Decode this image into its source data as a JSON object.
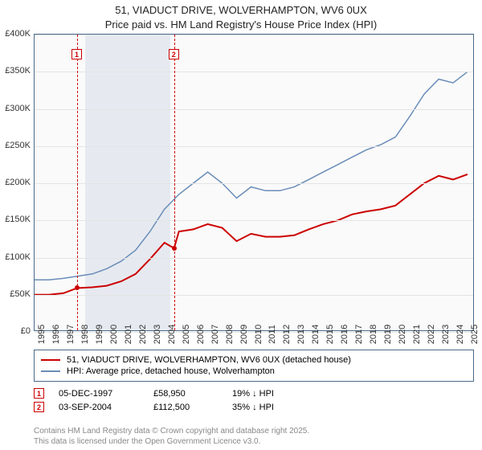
{
  "title": {
    "line1": "51, VIADUCT DRIVE, WOLVERHAMPTON, WV6 0UX",
    "line2": "Price paid vs. HM Land Registry's House Price Index (HPI)"
  },
  "chart": {
    "type": "line",
    "background_color": "#fafafa",
    "border_color": "#4a6a8a",
    "grid_color": "#e4e4e4",
    "y": {
      "min": 0,
      "max": 400000,
      "step": 50000,
      "labels": [
        "£0",
        "£50K",
        "£100K",
        "£150K",
        "£200K",
        "£250K",
        "£300K",
        "£350K",
        "£400K"
      ]
    },
    "x": {
      "min": 1995,
      "max": 2025.5,
      "labels": [
        "1995",
        "1996",
        "1997",
        "1998",
        "1999",
        "2000",
        "2001",
        "2002",
        "2003",
        "2004",
        "2005",
        "2006",
        "2007",
        "2008",
        "2009",
        "2010",
        "2011",
        "2012",
        "2013",
        "2014",
        "2015",
        "2016",
        "2017",
        "2018",
        "2019",
        "2020",
        "2021",
        "2022",
        "2023",
        "2024",
        "2025"
      ]
    },
    "shaded_ranges": [
      {
        "from": 1998.5,
        "to": 2004.4,
        "color": "rgba(100,130,180,0.13)"
      }
    ],
    "series": [
      {
        "name": "price_paid",
        "label": "51, VIADUCT DRIVE, WOLVERHAMPTON, WV6 0UX (detached house)",
        "color": "#cc0000",
        "width": 2,
        "points": [
          [
            1995,
            50000
          ],
          [
            1996,
            50000
          ],
          [
            1997,
            52000
          ],
          [
            1997.95,
            58950
          ],
          [
            1999,
            60000
          ],
          [
            2000,
            62000
          ],
          [
            2001,
            68000
          ],
          [
            2002,
            78000
          ],
          [
            2003,
            98000
          ],
          [
            2004,
            120000
          ],
          [
            2004.67,
            112500
          ],
          [
            2005,
            135000
          ],
          [
            2006,
            138000
          ],
          [
            2007,
            145000
          ],
          [
            2008,
            140000
          ],
          [
            2009,
            122000
          ],
          [
            2010,
            132000
          ],
          [
            2011,
            128000
          ],
          [
            2012,
            128000
          ],
          [
            2013,
            130000
          ],
          [
            2014,
            138000
          ],
          [
            2015,
            145000
          ],
          [
            2016,
            150000
          ],
          [
            2017,
            158000
          ],
          [
            2018,
            162000
          ],
          [
            2019,
            165000
          ],
          [
            2020,
            170000
          ],
          [
            2021,
            185000
          ],
          [
            2022,
            200000
          ],
          [
            2023,
            210000
          ],
          [
            2024,
            205000
          ],
          [
            2025,
            212000
          ]
        ],
        "markers": [
          {
            "x": 1997.95,
            "y": 58950
          },
          {
            "x": 2004.67,
            "y": 112500
          }
        ]
      },
      {
        "name": "hpi",
        "label": "HPI: Average price, detached house, Wolverhampton",
        "color": "#6b8db8",
        "width": 1.5,
        "points": [
          [
            1995,
            70000
          ],
          [
            1996,
            70000
          ],
          [
            1997,
            72000
          ],
          [
            1998,
            75000
          ],
          [
            1999,
            78000
          ],
          [
            2000,
            85000
          ],
          [
            2001,
            95000
          ],
          [
            2002,
            110000
          ],
          [
            2003,
            135000
          ],
          [
            2004,
            165000
          ],
          [
            2005,
            185000
          ],
          [
            2006,
            200000
          ],
          [
            2007,
            215000
          ],
          [
            2008,
            200000
          ],
          [
            2009,
            180000
          ],
          [
            2010,
            195000
          ],
          [
            2011,
            190000
          ],
          [
            2012,
            190000
          ],
          [
            2013,
            195000
          ],
          [
            2014,
            205000
          ],
          [
            2015,
            215000
          ],
          [
            2016,
            225000
          ],
          [
            2017,
            235000
          ],
          [
            2018,
            245000
          ],
          [
            2019,
            252000
          ],
          [
            2020,
            262000
          ],
          [
            2021,
            290000
          ],
          [
            2022,
            320000
          ],
          [
            2023,
            340000
          ],
          [
            2024,
            335000
          ],
          [
            2025,
            350000
          ]
        ]
      }
    ],
    "events": [
      {
        "n": "1",
        "x": 1997.95,
        "date": "05-DEC-1997",
        "price": "£58,950",
        "pct": "19% ↓ HPI"
      },
      {
        "n": "2",
        "x": 2004.67,
        "date": "03-SEP-2004",
        "price": "£112,500",
        "pct": "35% ↓ HPI"
      }
    ]
  },
  "attribution": {
    "line1": "Contains HM Land Registry data © Crown copyright and database right 2025.",
    "line2": "This data is licensed under the Open Government Licence v3.0."
  }
}
